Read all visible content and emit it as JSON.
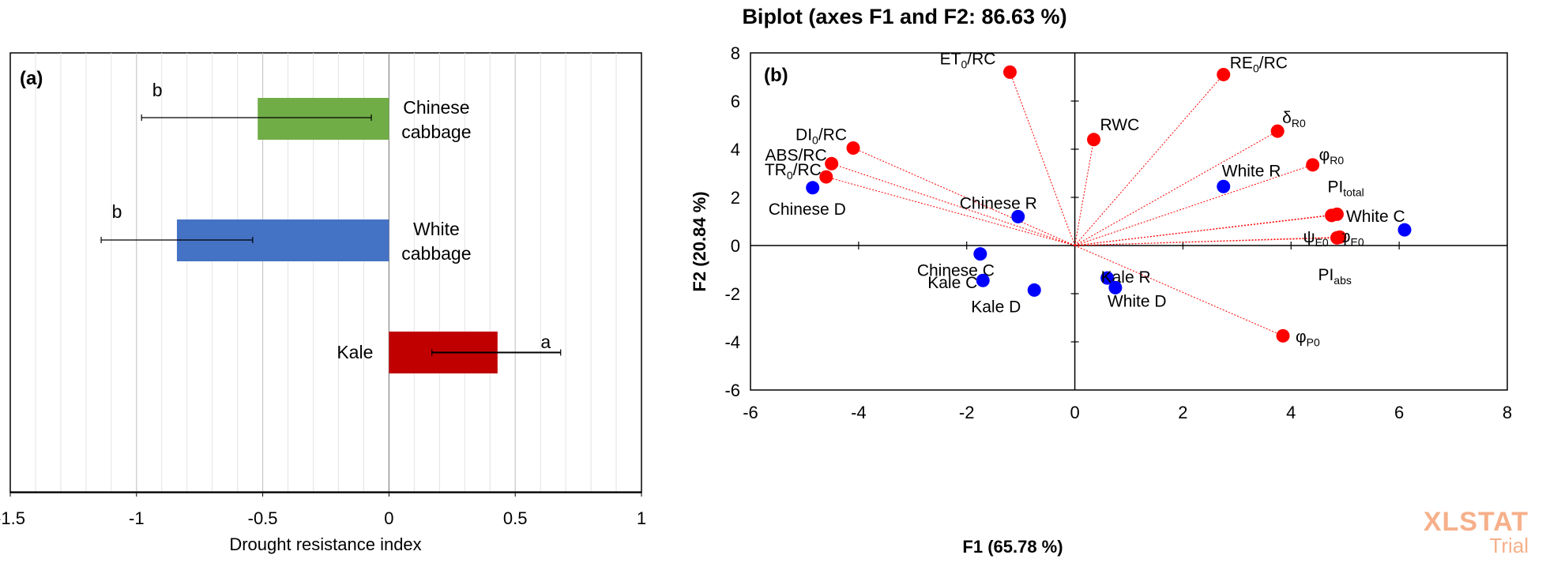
{
  "chart_data": [
    {
      "type": "bar",
      "orientation": "horizontal",
      "panel_label": "(a)",
      "categories": [
        "Chinese cabbage",
        "White cabbage",
        "Kale"
      ],
      "category_lines": [
        [
          "Chinese",
          "cabbage"
        ],
        [
          "White",
          "cabbage"
        ],
        [
          "Kale"
        ]
      ],
      "values": [
        -0.52,
        -0.84,
        0.43
      ],
      "error_low": [
        -0.98,
        -1.14,
        0.17
      ],
      "error_high": [
        -0.07,
        -0.54,
        0.68
      ],
      "letters": [
        "b",
        "b",
        "a"
      ],
      "colors": [
        "#70ad47",
        "#4472c4",
        "#c00000"
      ],
      "xlabel": "Drought resistance index",
      "xlim": [
        -1.5,
        1
      ],
      "xticks": [
        -1.5,
        -1,
        -0.5,
        0,
        0.5,
        1
      ],
      "tick_labels": [
        "-1.5",
        "-1",
        "-0.5",
        "0",
        "0.5",
        "1"
      ],
      "grid": true
    },
    {
      "type": "scatter",
      "panel_label": "(b)",
      "title": "Biplot (axes F1 and F2: 86.63 %)",
      "xlabel": "F1 (65.78 %)",
      "ylabel": "F2 (20.84 %)",
      "xlim": [
        -6,
        8
      ],
      "ylim": [
        -6,
        8
      ],
      "xticks": [
        -6,
        -4,
        -2,
        0,
        2,
        4,
        6,
        8
      ],
      "yticks": [
        -6,
        -4,
        -2,
        0,
        2,
        4,
        6,
        8
      ],
      "tick_labels_x": [
        "-6",
        "-4",
        "-2",
        "0",
        "2",
        "4",
        "6",
        "8"
      ],
      "tick_labels_y": [
        "-6",
        "-4",
        "-2",
        "0",
        "2",
        "4",
        "6",
        "8"
      ],
      "variables": [
        {
          "main": "ET",
          "sub": "0",
          "tail": "/RC",
          "x": -1.2,
          "y": 7.2
        },
        {
          "main": "RE",
          "sub": "0",
          "tail": "/RC",
          "x": 2.75,
          "y": 7.1
        },
        {
          "main": "RWC",
          "sub": "",
          "tail": "",
          "x": 0.35,
          "y": 4.4
        },
        {
          "main": "δ",
          "sub": "R0",
          "tail": "",
          "x": 3.75,
          "y": 4.75
        },
        {
          "main": "DI",
          "sub": "0",
          "tail": "/RC",
          "x": -4.1,
          "y": 4.05
        },
        {
          "main": "ABS/RC",
          "sub": "",
          "tail": "",
          "x": -4.5,
          "y": 3.4
        },
        {
          "main": "TR",
          "sub": "0",
          "tail": "/RC",
          "x": -4.6,
          "y": 2.85
        },
        {
          "main": "φ",
          "sub": "R0",
          "tail": "",
          "x": 4.4,
          "y": 3.35
        },
        {
          "main": "PI",
          "sub": "total",
          "tail": "",
          "x": 4.85,
          "y": 1.3
        },
        {
          "main": "ψ",
          "sub": "E0",
          "tail": "",
          "x": 4.75,
          "y": 1.25
        },
        {
          "main": "φ",
          "sub": "E0",
          "tail": "",
          "x": 4.9,
          "y": 0.35
        },
        {
          "main": "PI",
          "sub": "abs",
          "tail": "",
          "x": 4.85,
          "y": 0.32
        },
        {
          "main": "φ",
          "sub": "P0",
          "tail": "",
          "x": 3.85,
          "y": -3.75
        }
      ],
      "observations": [
        {
          "label": "Chinese D",
          "x": -4.85,
          "y": 2.4
        },
        {
          "label": "Chinese R",
          "x": -1.05,
          "y": 1.2
        },
        {
          "label": "White R",
          "x": 2.75,
          "y": 2.45
        },
        {
          "label": "White C",
          "x": 6.1,
          "y": 0.65
        },
        {
          "label": "Chinese C",
          "x": -1.75,
          "y": -0.35
        },
        {
          "label": "Kale C",
          "x": -1.7,
          "y": -1.45
        },
        {
          "label": "Kale D",
          "x": -0.75,
          "y": -1.85
        },
        {
          "label": "Kale R",
          "x": 0.6,
          "y": -1.35
        },
        {
          "label": "White D",
          "x": 0.75,
          "y": -1.75
        }
      ],
      "variable_color": "#ff0000",
      "observation_color": "#0000ff"
    }
  ],
  "watermark": {
    "line1": "XLSTAT",
    "line2": "Trial"
  }
}
